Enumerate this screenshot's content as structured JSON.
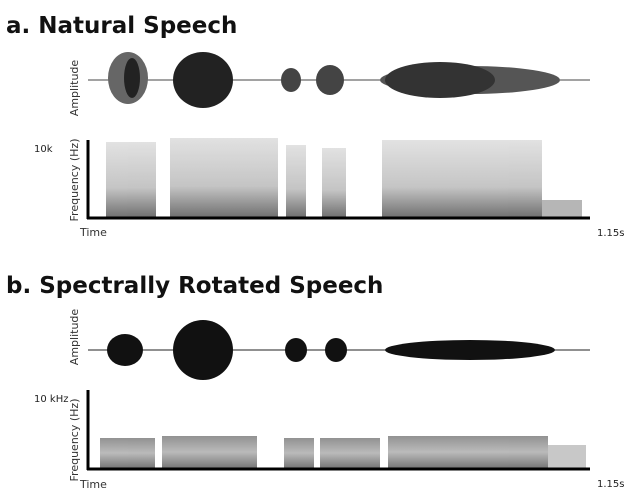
{
  "panels": [
    {
      "title": "a. Natural Speech",
      "amplitude_label": "Amplitude",
      "frequency_label": "Frequency (Hz)",
      "freq_max_label": "10k",
      "time_label": "Time",
      "time_end_label": "1.15s"
    },
    {
      "title": "b. Spectrally Rotated Speech",
      "amplitude_label": "Amplitude",
      "frequency_label": "Frequency (Hz)",
      "freq_max_label": "10 kHz",
      "time_label": "Time",
      "time_end_label": "1.15s"
    }
  ]
}
